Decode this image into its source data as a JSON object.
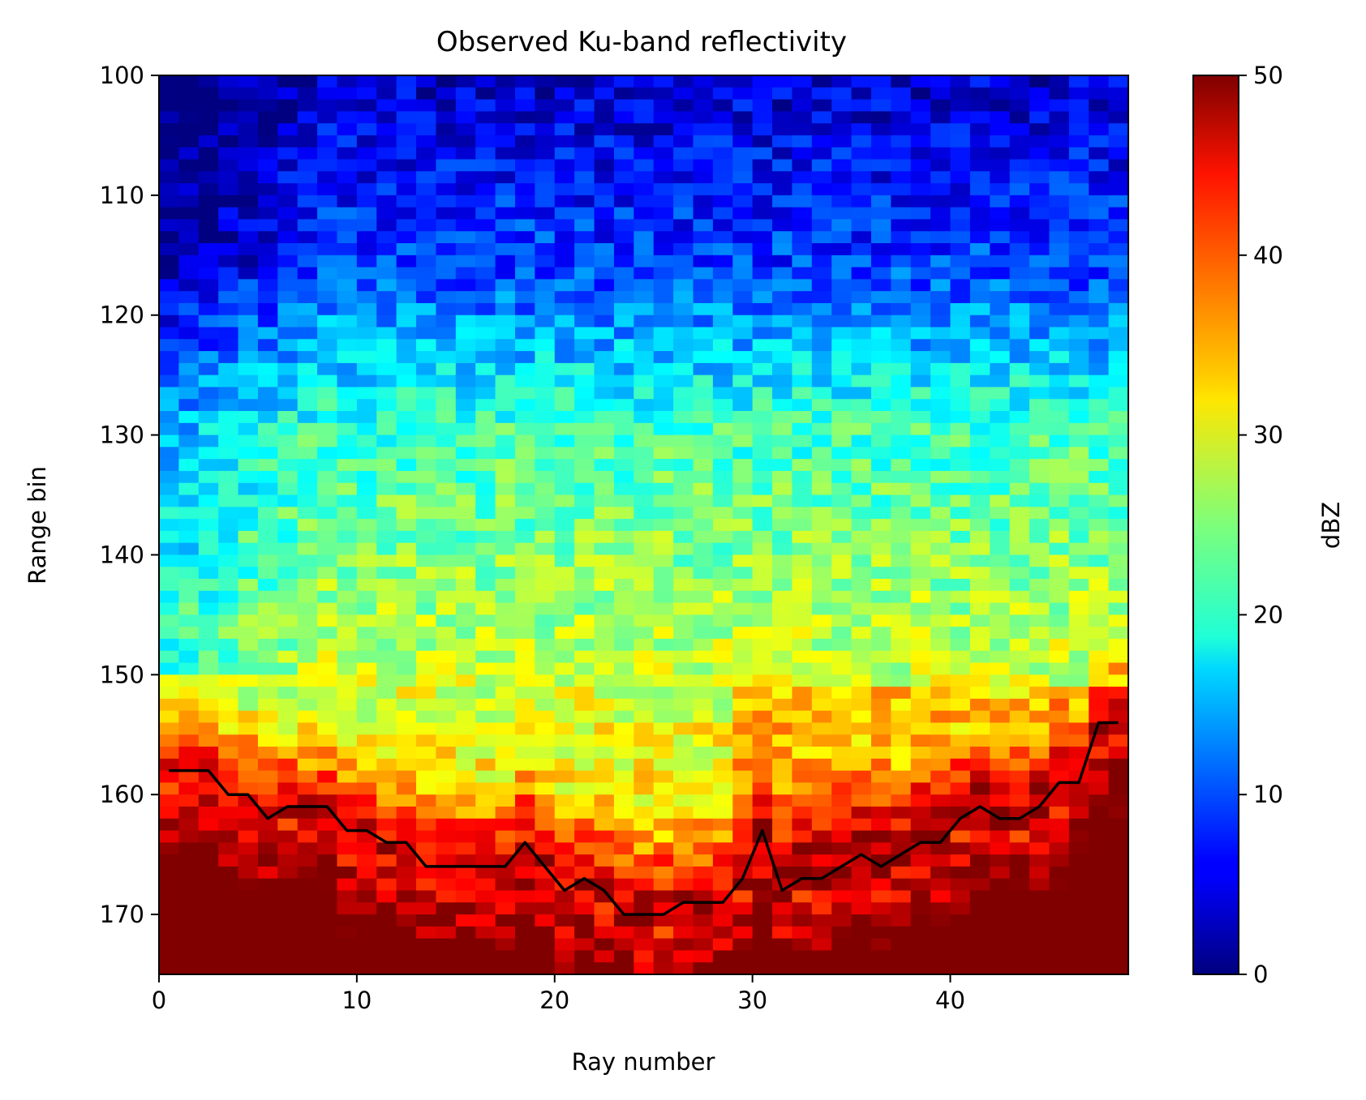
{
  "chart_data": {
    "type": "heatmap",
    "title": "Observed Ku-band reflectivity",
    "xlabel": "Ray number",
    "ylabel": "Range bin",
    "xlim": [
      0,
      49
    ],
    "ylim": [
      175,
      100
    ],
    "xticks": [
      "0",
      "10",
      "20",
      "30",
      "40"
    ],
    "yticks": [
      "100",
      "110",
      "120",
      "130",
      "140",
      "150",
      "160",
      "170"
    ],
    "colormap": "jet",
    "colorbar": {
      "label": "dBZ",
      "range": [
        0,
        50
      ],
      "ticks": [
        "0",
        "10",
        "20",
        "30",
        "40",
        "50"
      ]
    },
    "grid": false,
    "n_rays": 49,
    "n_bins": 75,
    "range_bin_start": 100,
    "line": {
      "name": "",
      "color": "#000000",
      "x": [
        0.5,
        1.5,
        2.5,
        3.5,
        4.5,
        5.5,
        6.5,
        7.5,
        8.5,
        9.5,
        10.5,
        11.5,
        12.5,
        13.5,
        14.5,
        15.5,
        16.5,
        17.5,
        18.5,
        19.5,
        20.5,
        21.5,
        22.5,
        23.5,
        24.5,
        25.5,
        26.5,
        27.5,
        28.5,
        29.5,
        30.5,
        31.5,
        32.5,
        33.5,
        34.5,
        35.5,
        36.5,
        37.5,
        38.5,
        39.5,
        40.5,
        41.5,
        42.5,
        43.5,
        44.5,
        45.5,
        46.5,
        47.5,
        48.5
      ],
      "y": [
        158,
        158,
        158,
        160,
        160,
        162,
        161,
        161,
        161,
        163,
        163,
        164,
        164,
        166,
        166,
        166,
        166,
        166,
        164,
        166,
        168,
        167,
        168,
        170,
        170,
        170,
        169,
        169,
        169,
        167,
        163,
        168,
        167,
        167,
        166,
        165,
        166,
        165,
        164,
        164,
        162,
        161,
        162,
        162,
        161,
        159,
        159,
        154,
        154
      ]
    }
  }
}
